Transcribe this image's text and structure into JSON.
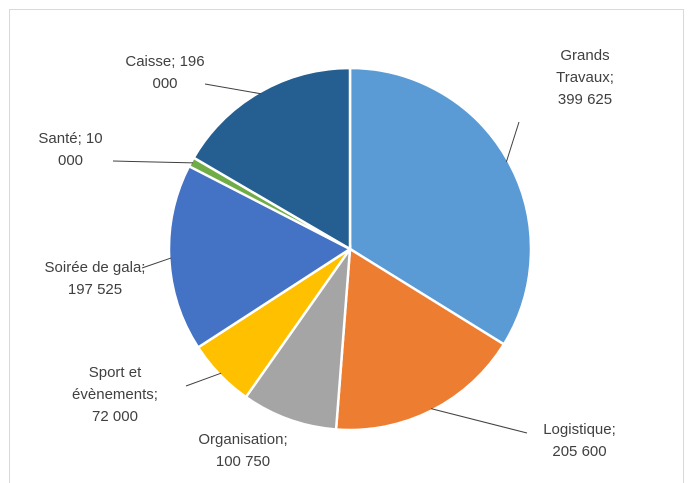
{
  "chart_data": {
    "type": "pie",
    "categories": [
      "Grands Travaux;",
      "Logistique;",
      "Organisation;",
      "Sport et évènements;",
      "Soirée de gala;",
      "Santé;",
      "Caisse;"
    ],
    "values": [
      399625,
      205600,
      100750,
      72000,
      197525,
      10000,
      196000
    ],
    "value_labels": [
      "399 625",
      "205 600",
      "100 750",
      "72 000",
      "197 525",
      "10 000",
      "196 000"
    ],
    "colors": [
      "#5b9bd5",
      "#ed7d31",
      "#a5a5a5",
      "#ffc000",
      "#4472c4",
      "#70ad47",
      "#255e91"
    ]
  }
}
